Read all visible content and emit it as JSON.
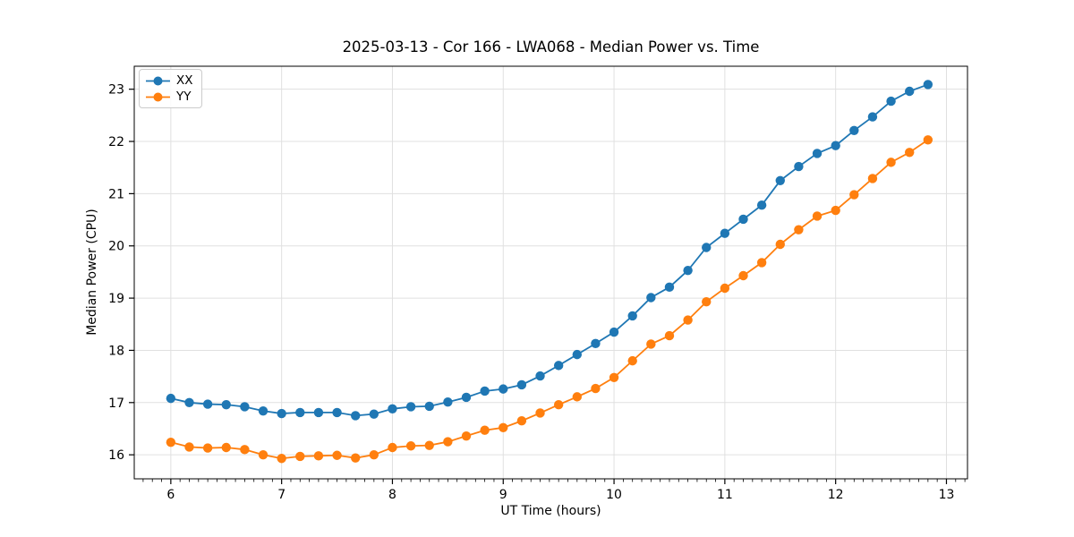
{
  "chart_data": {
    "type": "line",
    "title": "2025-03-13 - Cor 166 - LWA068 - Median Power vs. Time",
    "xlabel": "UT Time (hours)",
    "ylabel": "Median Power (CPU)",
    "xlim": [
      5.67,
      13.19
    ],
    "ylim": [
      15.54,
      23.44
    ],
    "xticks": [
      6,
      7,
      8,
      9,
      10,
      11,
      12,
      13
    ],
    "yticks": [
      16,
      17,
      18,
      19,
      20,
      21,
      22,
      23
    ],
    "minor_xtick_step_hours": 0.0833,
    "grid": true,
    "grid_color": "#e0e0e0",
    "legend_position": "upper left",
    "x": [
      6.0,
      6.1667,
      6.3333,
      6.5,
      6.6667,
      6.8333,
      7.0,
      7.1667,
      7.3333,
      7.5,
      7.6667,
      7.8333,
      8.0,
      8.1667,
      8.3333,
      8.5,
      8.6667,
      8.8333,
      9.0,
      9.1667,
      9.3333,
      9.5,
      9.6667,
      9.8333,
      10.0,
      10.1667,
      10.3333,
      10.5,
      10.6667,
      10.8333,
      11.0,
      11.1667,
      11.3333,
      11.5,
      11.6667,
      11.8333,
      12.0,
      12.1667,
      12.3333,
      12.5,
      12.6667,
      12.8333
    ],
    "series": [
      {
        "name": "XX",
        "color": "#1f77b4",
        "values": [
          17.08,
          17.0,
          16.97,
          16.96,
          16.92,
          16.84,
          16.79,
          16.81,
          16.81,
          16.81,
          16.75,
          16.78,
          16.88,
          16.92,
          16.93,
          17.01,
          17.1,
          17.22,
          17.26,
          17.34,
          17.51,
          17.71,
          17.92,
          18.13,
          18.35,
          18.66,
          19.01,
          19.21,
          19.53,
          19.97,
          20.24,
          20.51,
          20.78,
          21.25,
          21.52,
          21.77,
          21.92,
          22.21,
          22.47,
          22.77,
          22.96,
          23.09
        ]
      },
      {
        "name": "YY",
        "color": "#ff7f0e",
        "values": [
          16.24,
          16.15,
          16.13,
          16.14,
          16.1,
          16.0,
          15.93,
          15.97,
          15.98,
          15.99,
          15.94,
          16.0,
          16.14,
          16.17,
          16.18,
          16.25,
          16.36,
          16.47,
          16.52,
          16.65,
          16.8,
          16.96,
          17.11,
          17.27,
          17.48,
          17.8,
          18.12,
          18.28,
          18.58,
          18.93,
          19.19,
          19.43,
          19.68,
          20.03,
          20.31,
          20.57,
          20.68,
          20.98,
          21.29,
          21.6,
          21.79,
          22.03
        ]
      }
    ]
  }
}
